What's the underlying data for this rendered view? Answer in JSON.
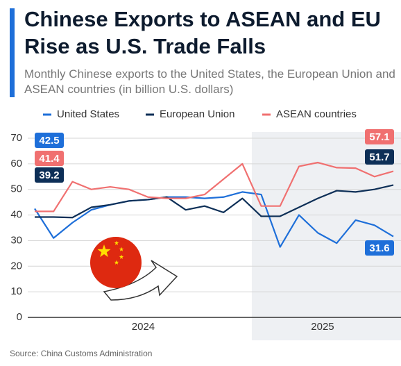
{
  "chart_data": {
    "type": "line",
    "title": "Chinese Exports to ASEAN and EU Rise as U.S. Trade Falls",
    "subtitle": "Monthly Chinese exports to the United States, the European Union and ASEAN countries (in billion U.S. dollars)",
    "source": "Source: China Customs Administration",
    "categories": [
      null,
      null,
      null,
      null,
      null,
      null,
      null,
      null,
      null,
      null,
      null,
      null,
      null,
      null,
      null,
      null,
      null,
      null,
      null,
      null
    ],
    "x_groups": [
      {
        "label": "2024",
        "count": 12
      },
      {
        "label": "2025",
        "count": 8
      }
    ],
    "series": [
      {
        "name": "United States",
        "color": "#1e6fd9",
        "values": [
          42.5,
          31,
          37,
          42,
          44,
          45.5,
          46,
          47,
          47,
          46.5,
          47,
          49,
          48,
          27.5,
          40,
          33,
          29,
          38,
          36,
          31.6
        ]
      },
      {
        "name": "European Union",
        "color": "#0d2f57",
        "values": [
          39.2,
          39.2,
          39,
          43,
          44,
          45.5,
          46,
          47,
          42,
          43.5,
          41,
          46.5,
          39.5,
          39.5,
          43,
          46.5,
          49.5,
          49,
          50,
          51.7
        ]
      },
      {
        "name": "ASEAN countries",
        "color": "#f07070",
        "values": [
          41.4,
          41.4,
          53,
          50,
          51,
          50,
          47,
          46.5,
          46.5,
          48,
          54,
          60,
          43.5,
          43.5,
          59,
          60.5,
          58.5,
          58.3,
          55,
          57.1
        ]
      }
    ],
    "ylim": [
      0,
      70
    ],
    "yticks": [
      0,
      10,
      20,
      30,
      40,
      50,
      60,
      70
    ],
    "grid": true
  }
}
